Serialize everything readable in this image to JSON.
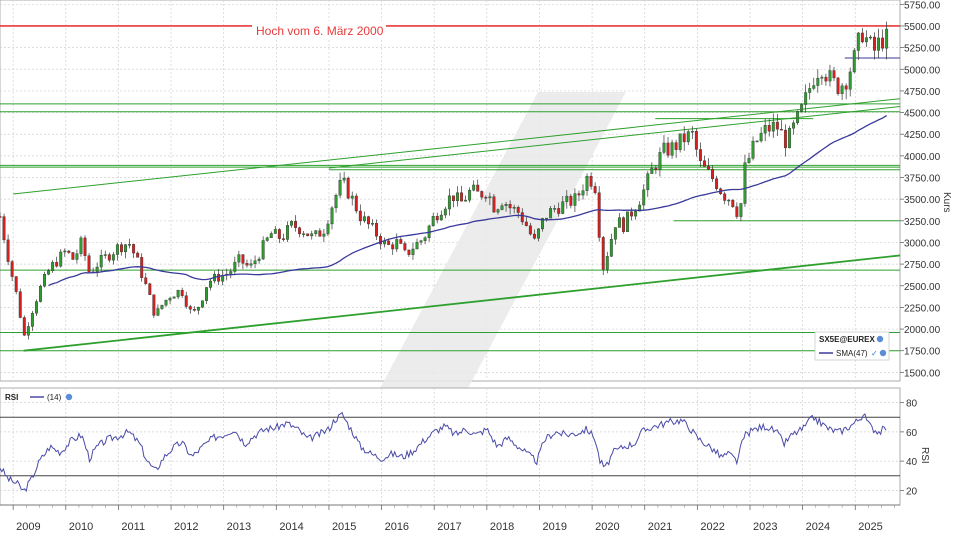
{
  "chart_data": [
    {
      "type": "candlestick",
      "instrument_label": "SX5E@EUREX",
      "ylabel": "Kurs",
      "ylim": [
        1400,
        5800
      ],
      "y_ticks": [
        1500,
        1750,
        2000,
        2250,
        2500,
        2750,
        3000,
        3250,
        3500,
        3750,
        4000,
        4250,
        4500,
        4750,
        5000,
        5250,
        5500,
        5750
      ],
      "y_tick_labels": [
        "1500.00",
        "1750.00",
        "2000.00",
        "2250.00",
        "2500.00",
        "2750.00",
        "3000.00",
        "3250.00",
        "3500.00",
        "3750.00",
        "4000.00",
        "4250.00",
        "4500.00",
        "4750.00",
        "5000.00",
        "5250.00",
        "5500.00",
        "5750.00"
      ],
      "x_ticks": [
        2009,
        2010,
        2011,
        2012,
        2013,
        2014,
        2015,
        2016,
        2017,
        2018,
        2019,
        2020,
        2021,
        2022,
        2023,
        2024,
        2025
      ],
      "x_tick_labels": [
        "2009",
        "2010",
        "2011",
        "2012",
        "2013",
        "2014",
        "2015",
        "2016",
        "2017",
        "2018",
        "2019",
        "2020",
        "2021",
        "2022",
        "2023",
        "2024",
        "2025"
      ],
      "xlim": [
        2008.75,
        2025.85
      ],
      "grid": true,
      "annotation": "Hoch vom 6. März 2000",
      "legend": {
        "instrument": "SX5E@EUREX",
        "sma": "SMA(47)",
        "placement": "bottom-right"
      },
      "sma_period": 47,
      "close_anchors": [
        [
          2008.75,
          3300
        ],
        [
          2008.95,
          2700
        ],
        [
          2009.1,
          2300
        ],
        [
          2009.2,
          1900
        ],
        [
          2009.35,
          2200
        ],
        [
          2009.5,
          2450
        ],
        [
          2009.7,
          2700
        ],
        [
          2009.85,
          2800
        ],
        [
          2010.0,
          2900
        ],
        [
          2010.15,
          2800
        ],
        [
          2010.3,
          3000
        ],
        [
          2010.45,
          2650
        ],
        [
          2010.6,
          2750
        ],
        [
          2010.8,
          2850
        ],
        [
          2011.0,
          2950
        ],
        [
          2011.2,
          3000
        ],
        [
          2011.35,
          2800
        ],
        [
          2011.55,
          2450
        ],
        [
          2011.7,
          2150
        ],
        [
          2011.85,
          2300
        ],
        [
          2012.0,
          2400
        ],
        [
          2012.2,
          2450
        ],
        [
          2012.4,
          2150
        ],
        [
          2012.55,
          2300
        ],
        [
          2012.7,
          2550
        ],
        [
          2012.9,
          2600
        ],
        [
          2013.1,
          2650
        ],
        [
          2013.3,
          2800
        ],
        [
          2013.5,
          2700
        ],
        [
          2013.7,
          2900
        ],
        [
          2013.9,
          3100
        ],
        [
          2014.1,
          3050
        ],
        [
          2014.3,
          3200
        ],
        [
          2014.5,
          3150
        ],
        [
          2014.7,
          3050
        ],
        [
          2014.9,
          3150
        ],
        [
          2015.1,
          3500
        ],
        [
          2015.25,
          3700
        ],
        [
          2015.4,
          3550
        ],
        [
          2015.6,
          3300
        ],
        [
          2015.75,
          3200
        ],
        [
          2015.9,
          3100
        ],
        [
          2016.1,
          2950
        ],
        [
          2016.3,
          3000
        ],
        [
          2016.45,
          2850
        ],
        [
          2016.6,
          2950
        ],
        [
          2016.8,
          3050
        ],
        [
          2017.0,
          3300
        ],
        [
          2017.2,
          3450
        ],
        [
          2017.35,
          3550
        ],
        [
          2017.5,
          3450
        ],
        [
          2017.7,
          3600
        ],
        [
          2017.85,
          3550
        ],
        [
          2018.0,
          3600
        ],
        [
          2018.15,
          3400
        ],
        [
          2018.3,
          3500
        ],
        [
          2018.45,
          3400
        ],
        [
          2018.6,
          3350
        ],
        [
          2018.75,
          3200
        ],
        [
          2018.9,
          3000
        ],
        [
          2019.1,
          3300
        ],
        [
          2019.3,
          3400
        ],
        [
          2019.5,
          3450
        ],
        [
          2019.7,
          3500
        ],
        [
          2019.9,
          3750
        ],
        [
          2020.05,
          3700
        ],
        [
          2020.2,
          2700
        ],
        [
          2020.3,
          2900
        ],
        [
          2020.45,
          3250
        ],
        [
          2020.6,
          3200
        ],
        [
          2020.8,
          3400
        ],
        [
          2020.95,
          3550
        ],
        [
          2021.15,
          3850
        ],
        [
          2021.35,
          4050
        ],
        [
          2021.55,
          4100
        ],
        [
          2021.75,
          4200
        ],
        [
          2021.9,
          4250
        ],
        [
          2022.05,
          3900
        ],
        [
          2022.2,
          3800
        ],
        [
          2022.35,
          3700
        ],
        [
          2022.5,
          3550
        ],
        [
          2022.65,
          3500
        ],
        [
          2022.8,
          3300
        ],
        [
          2022.9,
          3850
        ],
        [
          2023.1,
          4150
        ],
        [
          2023.3,
          4300
        ],
        [
          2023.5,
          4350
        ],
        [
          2023.7,
          4150
        ],
        [
          2023.85,
          4350
        ],
        [
          2024.0,
          4550
        ],
        [
          2024.2,
          4900
        ],
        [
          2024.35,
          5050
        ],
        [
          2024.5,
          4900
        ],
        [
          2024.65,
          4800
        ],
        [
          2024.8,
          4850
        ],
        [
          2025.0,
          5150
        ],
        [
          2025.12,
          5450
        ],
        [
          2025.25,
          5300
        ],
        [
          2025.35,
          5200
        ],
        [
          2025.5,
          5350
        ],
        [
          2025.6,
          5350
        ]
      ],
      "horizontal_levels": [
        {
          "y": 5500,
          "color": "#e83a3a",
          "label": "Hoch vom 6. März 2000"
        },
        {
          "y": 4600,
          "color": "#2ea02e"
        },
        {
          "y": 4510,
          "color": "#2ea02e"
        },
        {
          "y": 3890,
          "color": "#2ea02e"
        },
        {
          "y": 3870,
          "color": "#2ea02e"
        },
        {
          "y": 2680,
          "color": "#2ea02e"
        },
        {
          "y": 1960,
          "color": "#2ea02e"
        },
        {
          "y": 1750,
          "color": "#2ea02e"
        }
      ],
      "segment_levels": [
        {
          "x0": 2024.8,
          "x1": 2025.85,
          "y": 5130,
          "color": "#3a3a9a"
        },
        {
          "x0": 2015.0,
          "x1": 2025.85,
          "y": 3840,
          "color": "#2ea02e"
        },
        {
          "x0": 2021.55,
          "x1": 2025.85,
          "y": 3250,
          "color": "#2ea02e"
        },
        {
          "x0": 2021.2,
          "x1": 2024.2,
          "y": 4430,
          "color": "#2ea02e"
        }
      ],
      "trend_lines": [
        {
          "x0": 2009.2,
          "y0": 1750,
          "x1": 2025.85,
          "y1": 2850,
          "color": "#2ea02e",
          "width": 1.8
        },
        {
          "x0": 2009.0,
          "y0": 3560,
          "x1": 2025.85,
          "y1": 4660,
          "color": "#2ea02e",
          "width": 1
        },
        {
          "x0": 2015.0,
          "y0": 3860,
          "x1": 2025.85,
          "y1": 4570,
          "color": "#2ea02e",
          "width": 1
        }
      ],
      "colors": {
        "up": "#2e9c2e",
        "down": "#d62020",
        "sma": "#3a3a9a",
        "grid": "#d0d0d0",
        "rsi": "#4a4aa8"
      }
    },
    {
      "type": "line",
      "title": "RSI",
      "series": [
        {
          "name": "(14)"
        }
      ],
      "ylabel": "RSI",
      "ylim": [
        10,
        90
      ],
      "y_ticks": [
        20,
        40,
        60,
        80
      ],
      "y_tick_labels": [
        "20",
        "40",
        "60",
        "80"
      ],
      "ref_levels": [
        30,
        70
      ],
      "rsi_anchors": [
        [
          2008.75,
          36
        ],
        [
          2008.9,
          28
        ],
        [
          2009.1,
          24
        ],
        [
          2009.2,
          19
        ],
        [
          2009.35,
          28
        ],
        [
          2009.5,
          40
        ],
        [
          2009.7,
          50
        ],
        [
          2009.9,
          46
        ],
        [
          2010.1,
          54
        ],
        [
          2010.3,
          58
        ],
        [
          2010.45,
          42
        ],
        [
          2010.6,
          50
        ],
        [
          2010.8,
          55
        ],
        [
          2011.0,
          57
        ],
        [
          2011.2,
          60
        ],
        [
          2011.4,
          52
        ],
        [
          2011.55,
          40
        ],
        [
          2011.7,
          33
        ],
        [
          2011.85,
          42
        ],
        [
          2012.0,
          48
        ],
        [
          2012.2,
          53
        ],
        [
          2012.4,
          43
        ],
        [
          2012.6,
          50
        ],
        [
          2012.8,
          56
        ],
        [
          2013.0,
          58
        ],
        [
          2013.2,
          62
        ],
        [
          2013.4,
          52
        ],
        [
          2013.6,
          58
        ],
        [
          2013.8,
          62
        ],
        [
          2014.0,
          63
        ],
        [
          2014.2,
          66
        ],
        [
          2014.4,
          62
        ],
        [
          2014.6,
          55
        ],
        [
          2014.8,
          58
        ],
        [
          2015.0,
          62
        ],
        [
          2015.1,
          68
        ],
        [
          2015.25,
          72
        ],
        [
          2015.45,
          60
        ],
        [
          2015.6,
          50
        ],
        [
          2015.8,
          45
        ],
        [
          2016.0,
          42
        ],
        [
          2016.2,
          45
        ],
        [
          2016.4,
          43
        ],
        [
          2016.6,
          47
        ],
        [
          2016.8,
          54
        ],
        [
          2017.0,
          60
        ],
        [
          2017.2,
          64
        ],
        [
          2017.4,
          58
        ],
        [
          2017.6,
          62
        ],
        [
          2017.8,
          58
        ],
        [
          2018.0,
          62
        ],
        [
          2018.2,
          50
        ],
        [
          2018.4,
          56
        ],
        [
          2018.6,
          50
        ],
        [
          2018.8,
          44
        ],
        [
          2018.95,
          40
        ],
        [
          2019.1,
          55
        ],
        [
          2019.3,
          60
        ],
        [
          2019.5,
          58
        ],
        [
          2019.7,
          59
        ],
        [
          2019.9,
          62
        ],
        [
          2020.05,
          56
        ],
        [
          2020.15,
          40
        ],
        [
          2020.25,
          35
        ],
        [
          2020.4,
          46
        ],
        [
          2020.6,
          50
        ],
        [
          2020.8,
          52
        ],
        [
          2020.95,
          60
        ],
        [
          2021.1,
          63
        ],
        [
          2021.3,
          65
        ],
        [
          2021.5,
          67
        ],
        [
          2021.7,
          68
        ],
        [
          2021.85,
          63
        ],
        [
          2022.0,
          56
        ],
        [
          2022.15,
          52
        ],
        [
          2022.3,
          48
        ],
        [
          2022.45,
          43
        ],
        [
          2022.6,
          45
        ],
        [
          2022.75,
          40
        ],
        [
          2022.9,
          58
        ],
        [
          2023.1,
          62
        ],
        [
          2023.3,
          64
        ],
        [
          2023.5,
          60
        ],
        [
          2023.65,
          52
        ],
        [
          2023.8,
          58
        ],
        [
          2024.0,
          62
        ],
        [
          2024.2,
          70
        ],
        [
          2024.35,
          66
        ],
        [
          2024.5,
          62
        ],
        [
          2024.7,
          60
        ],
        [
          2024.9,
          64
        ],
        [
          2025.05,
          68
        ],
        [
          2025.15,
          72
        ],
        [
          2025.3,
          63
        ],
        [
          2025.45,
          60
        ],
        [
          2025.6,
          63
        ]
      ]
    }
  ],
  "icons": {
    "legend_status": "info-icon",
    "sma_status": "checkmark-icon"
  }
}
